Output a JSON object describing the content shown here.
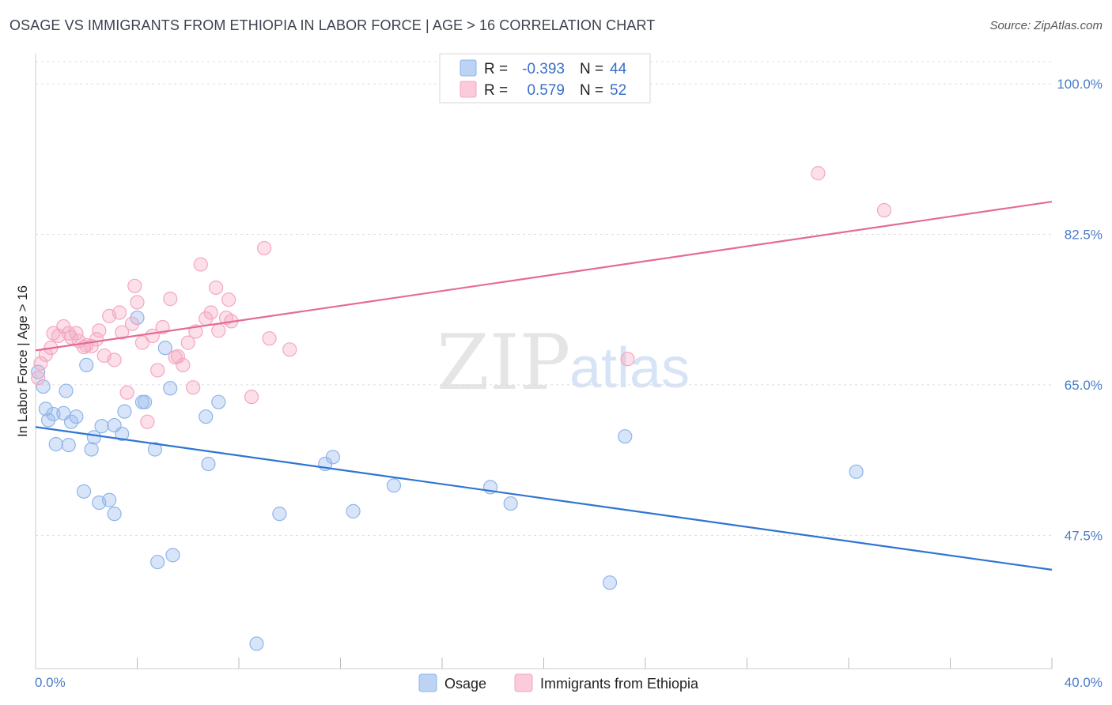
{
  "header": {
    "title": "OSAGE VS IMMIGRANTS FROM ETHIOPIA IN LABOR FORCE | AGE > 16 CORRELATION CHART",
    "source": "Source: ZipAtlas.com"
  },
  "watermark": {
    "zip": "ZIP",
    "atlas": "atlas"
  },
  "legend": {
    "rows": [
      {
        "r_label": "R =",
        "r_value": "-0.393",
        "n_label": "N =",
        "n_value": "44"
      },
      {
        "r_label": "R =",
        "r_value": "0.579",
        "n_label": "N =",
        "n_value": "52"
      }
    ]
  },
  "chart_data": {
    "type": "scatter",
    "title": "OSAGE VS IMMIGRANTS FROM ETHIOPIA IN LABOR FORCE | AGE > 16 CORRELATION CHART",
    "xlabel": "",
    "ylabel": "In Labor Force | Age > 16",
    "xlim": [
      0,
      40
    ],
    "ylim": [
      32,
      103.5
    ],
    "x_tick_labels": [
      "0.0%",
      "40.0%"
    ],
    "y_ticks": [
      47.5,
      65.0,
      82.5,
      100.0
    ],
    "y_tick_labels": [
      "47.5%",
      "65.0%",
      "82.5%",
      "100.0%"
    ],
    "grid": true,
    "legend_position": "top-center",
    "series": [
      {
        "name": "Osage",
        "color": "#8fb5ea",
        "line_color": "#2f74d0",
        "r": -0.393,
        "n": 44,
        "trend": {
          "x": [
            0,
            40
          ],
          "y": [
            60.1,
            43.5
          ]
        },
        "points": [
          [
            0.1,
            66.5
          ],
          [
            0.3,
            64.8
          ],
          [
            0.4,
            62.2
          ],
          [
            0.5,
            60.9
          ],
          [
            0.7,
            61.6
          ],
          [
            0.8,
            58.1
          ],
          [
            1.1,
            61.7
          ],
          [
            1.2,
            64.3
          ],
          [
            1.3,
            58.0
          ],
          [
            1.4,
            60.7
          ],
          [
            1.6,
            61.3
          ],
          [
            1.9,
            52.6
          ],
          [
            2.0,
            67.3
          ],
          [
            2.2,
            57.5
          ],
          [
            2.3,
            58.9
          ],
          [
            2.5,
            51.3
          ],
          [
            2.6,
            60.2
          ],
          [
            2.9,
            51.6
          ],
          [
            3.1,
            60.3
          ],
          [
            3.1,
            50.0
          ],
          [
            3.4,
            59.3
          ],
          [
            3.5,
            61.9
          ],
          [
            4.0,
            72.8
          ],
          [
            4.2,
            63.0
          ],
          [
            4.3,
            63.0
          ],
          [
            4.7,
            57.5
          ],
          [
            4.8,
            44.4
          ],
          [
            5.1,
            69.3
          ],
          [
            5.3,
            64.6
          ],
          [
            5.4,
            45.2
          ],
          [
            6.7,
            61.3
          ],
          [
            6.8,
            55.8
          ],
          [
            7.2,
            63.0
          ],
          [
            8.7,
            34.9
          ],
          [
            9.6,
            50.0
          ],
          [
            11.4,
            55.8
          ],
          [
            11.7,
            56.6
          ],
          [
            12.5,
            50.3
          ],
          [
            14.1,
            53.3
          ],
          [
            17.9,
            53.1
          ],
          [
            18.7,
            51.2
          ],
          [
            22.6,
            42.0
          ],
          [
            23.2,
            59.0
          ],
          [
            32.3,
            54.9
          ]
        ]
      },
      {
        "name": "Immigrants from Ethiopia",
        "color": "#f4a7c0",
        "line_color": "#e56b95",
        "r": 0.579,
        "n": 52,
        "trend": {
          "x": [
            0,
            40
          ],
          "y": [
            69.0,
            86.3
          ]
        },
        "points": [
          [
            0.1,
            65.8
          ],
          [
            0.2,
            67.5
          ],
          [
            0.4,
            68.5
          ],
          [
            0.6,
            69.3
          ],
          [
            0.7,
            71.0
          ],
          [
            0.9,
            70.7
          ],
          [
            1.1,
            71.8
          ],
          [
            1.3,
            71.0
          ],
          [
            1.4,
            70.5
          ],
          [
            1.6,
            71.0
          ],
          [
            1.7,
            70.1
          ],
          [
            1.9,
            69.4
          ],
          [
            2.0,
            69.6
          ],
          [
            2.2,
            69.5
          ],
          [
            2.4,
            70.3
          ],
          [
            2.5,
            71.3
          ],
          [
            2.7,
            68.4
          ],
          [
            2.9,
            73.0
          ],
          [
            3.1,
            67.9
          ],
          [
            3.3,
            73.4
          ],
          [
            3.4,
            71.1
          ],
          [
            3.6,
            64.1
          ],
          [
            3.8,
            72.1
          ],
          [
            3.9,
            76.5
          ],
          [
            4.0,
            74.6
          ],
          [
            4.2,
            69.9
          ],
          [
            4.4,
            60.7
          ],
          [
            4.6,
            70.7
          ],
          [
            4.8,
            66.7
          ],
          [
            5.0,
            71.7
          ],
          [
            5.3,
            75.0
          ],
          [
            5.5,
            68.2
          ],
          [
            5.6,
            68.3
          ],
          [
            5.8,
            67.3
          ],
          [
            6.0,
            69.9
          ],
          [
            6.2,
            64.7
          ],
          [
            6.3,
            71.2
          ],
          [
            6.5,
            79.0
          ],
          [
            6.7,
            72.7
          ],
          [
            6.9,
            73.4
          ],
          [
            7.1,
            76.3
          ],
          [
            7.2,
            71.3
          ],
          [
            7.5,
            72.8
          ],
          [
            7.6,
            74.9
          ],
          [
            7.7,
            72.4
          ],
          [
            8.5,
            63.6
          ],
          [
            9.0,
            80.9
          ],
          [
            9.2,
            70.4
          ],
          [
            10.0,
            69.1
          ],
          [
            23.3,
            68.0
          ],
          [
            30.8,
            89.6
          ],
          [
            33.4,
            85.3
          ]
        ]
      }
    ]
  }
}
